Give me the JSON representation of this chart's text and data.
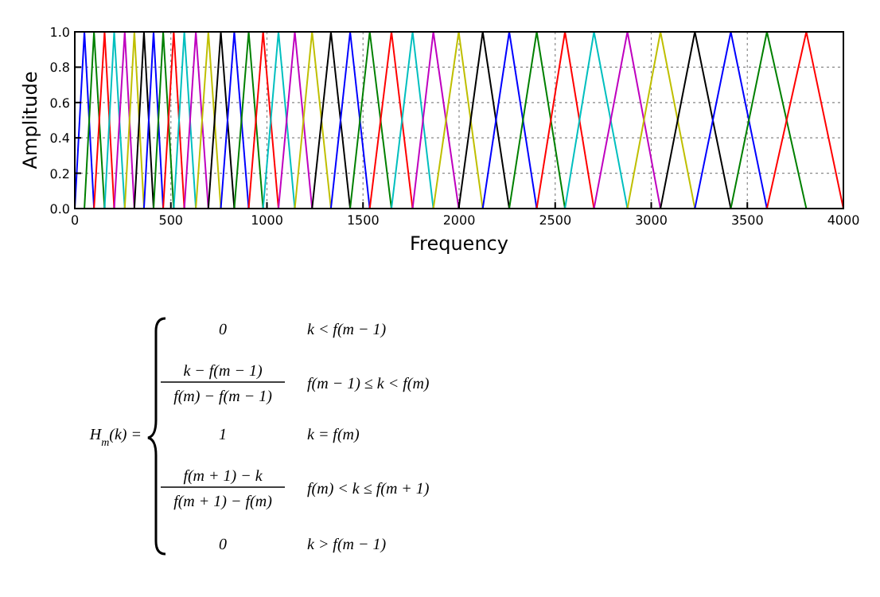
{
  "chart_data": {
    "type": "line",
    "xlabel": "Frequency",
    "ylabel": "Amplitude",
    "xlim": [
      0,
      4000
    ],
    "ylim": [
      0,
      1
    ],
    "xticks": [
      0,
      500,
      1000,
      1500,
      2000,
      2500,
      3000,
      3500,
      4000
    ],
    "yticks": [
      {
        "value": 0,
        "label": "0.0"
      },
      {
        "value": 0.2,
        "label": "0.2"
      },
      {
        "value": 0.4,
        "label": "0.4"
      },
      {
        "value": 0.6,
        "label": "0.6"
      },
      {
        "value": 0.8,
        "label": "0.8"
      },
      {
        "value": 1,
        "label": "1.0"
      }
    ],
    "grid": true,
    "marker": "none",
    "line_style": "solid",
    "series": [
      {
        "color": "#0000ff",
        "x": [
          0,
          50,
          100
        ],
        "values": [
          0,
          1,
          0
        ]
      },
      {
        "color": "#008000",
        "x": [
          50,
          100,
          155
        ],
        "values": [
          0,
          1,
          0
        ]
      },
      {
        "color": "#ff0000",
        "x": [
          100,
          155,
          205
        ],
        "values": [
          0,
          1,
          0
        ]
      },
      {
        "color": "#00bfbf",
        "x": [
          155,
          205,
          260
        ],
        "values": [
          0,
          1,
          0
        ]
      },
      {
        "color": "#bf00bf",
        "x": [
          205,
          260,
          310
        ],
        "values": [
          0,
          1,
          0
        ]
      },
      {
        "color": "#bfbf00",
        "x": [
          260,
          310,
          360
        ],
        "values": [
          0,
          1,
          0
        ]
      },
      {
        "color": "#000000",
        "x": [
          310,
          360,
          410
        ],
        "values": [
          0,
          1,
          0
        ]
      },
      {
        "color": "#0000ff",
        "x": [
          360,
          410,
          460
        ],
        "values": [
          0,
          1,
          0
        ]
      },
      {
        "color": "#008000",
        "x": [
          410,
          460,
          515
        ],
        "values": [
          0,
          1,
          0
        ]
      },
      {
        "color": "#ff0000",
        "x": [
          460,
          515,
          570
        ],
        "values": [
          0,
          1,
          0
        ]
      },
      {
        "color": "#00bfbf",
        "x": [
          515,
          570,
          630
        ],
        "values": [
          0,
          1,
          0
        ]
      },
      {
        "color": "#bf00bf",
        "x": [
          570,
          630,
          695
        ],
        "values": [
          0,
          1,
          0
        ]
      },
      {
        "color": "#bfbf00",
        "x": [
          630,
          695,
          760
        ],
        "values": [
          0,
          1,
          0
        ]
      },
      {
        "color": "#000000",
        "x": [
          695,
          760,
          830
        ],
        "values": [
          0,
          1,
          0
        ]
      },
      {
        "color": "#0000ff",
        "x": [
          760,
          830,
          905
        ],
        "values": [
          0,
          1,
          0
        ]
      },
      {
        "color": "#008000",
        "x": [
          830,
          905,
          980
        ],
        "values": [
          0,
          1,
          0
        ]
      },
      {
        "color": "#ff0000",
        "x": [
          905,
          980,
          1060
        ],
        "values": [
          0,
          1,
          0
        ]
      },
      {
        "color": "#00bfbf",
        "x": [
          980,
          1060,
          1145
        ],
        "values": [
          0,
          1,
          0
        ]
      },
      {
        "color": "#bf00bf",
        "x": [
          1060,
          1145,
          1235
        ],
        "values": [
          0,
          1,
          0
        ]
      },
      {
        "color": "#bfbf00",
        "x": [
          1145,
          1235,
          1333
        ],
        "values": [
          0,
          1,
          0
        ]
      },
      {
        "color": "#000000",
        "x": [
          1235,
          1333,
          1433
        ],
        "values": [
          0,
          1,
          0
        ]
      },
      {
        "color": "#0000ff",
        "x": [
          1333,
          1433,
          1535
        ],
        "values": [
          0,
          1,
          0
        ]
      },
      {
        "color": "#008000",
        "x": [
          1433,
          1535,
          1648
        ],
        "values": [
          0,
          1,
          0
        ]
      },
      {
        "color": "#ff0000",
        "x": [
          1535,
          1648,
          1758
        ],
        "values": [
          0,
          1,
          0
        ]
      },
      {
        "color": "#00bfbf",
        "x": [
          1648,
          1758,
          1866
        ],
        "values": [
          0,
          1,
          0
        ]
      },
      {
        "color": "#bf00bf",
        "x": [
          1758,
          1866,
          1998
        ],
        "values": [
          0,
          1,
          0
        ]
      },
      {
        "color": "#bfbf00",
        "x": [
          1866,
          1998,
          2123
        ],
        "values": [
          0,
          1,
          0
        ]
      },
      {
        "color": "#000000",
        "x": [
          1998,
          2123,
          2261
        ],
        "values": [
          0,
          1,
          0
        ]
      },
      {
        "color": "#0000ff",
        "x": [
          2123,
          2261,
          2404
        ],
        "values": [
          0,
          1,
          0
        ]
      },
      {
        "color": "#008000",
        "x": [
          2261,
          2404,
          2551
        ],
        "values": [
          0,
          1,
          0
        ]
      },
      {
        "color": "#ff0000",
        "x": [
          2404,
          2551,
          2702
        ],
        "values": [
          0,
          1,
          0
        ]
      },
      {
        "color": "#00bfbf",
        "x": [
          2551,
          2702,
          2876
        ],
        "values": [
          0,
          1,
          0
        ]
      },
      {
        "color": "#bf00bf",
        "x": [
          2702,
          2876,
          3048
        ],
        "values": [
          0,
          1,
          0
        ]
      },
      {
        "color": "#bfbf00",
        "x": [
          2876,
          3048,
          3227
        ],
        "values": [
          0,
          1,
          0
        ]
      },
      {
        "color": "#000000",
        "x": [
          3048,
          3227,
          3414
        ],
        "values": [
          0,
          1,
          0
        ]
      },
      {
        "color": "#0000ff",
        "x": [
          3227,
          3414,
          3602
        ],
        "values": [
          0,
          1,
          0
        ]
      },
      {
        "color": "#008000",
        "x": [
          3414,
          3602,
          3807
        ],
        "values": [
          0,
          1,
          0
        ]
      },
      {
        "color": "#ff0000",
        "x": [
          3602,
          3807,
          4000
        ],
        "values": [
          0,
          1,
          0
        ]
      }
    ],
    "annotations": [
      "H$_{m}$(k) =",
      "0",
      "k < f(m − 1)",
      "k − f(m − 1)",
      "f(m) − f(m − 1)",
      "f(m − 1) ≤ k < f(m)",
      "1",
      "k = f(m)",
      "f(m + 1) − k",
      "f(m + 1) − f(m)",
      "f(m) < k ≤ f(m + 1)",
      "0",
      "k > f(m − 1)"
    ]
  }
}
